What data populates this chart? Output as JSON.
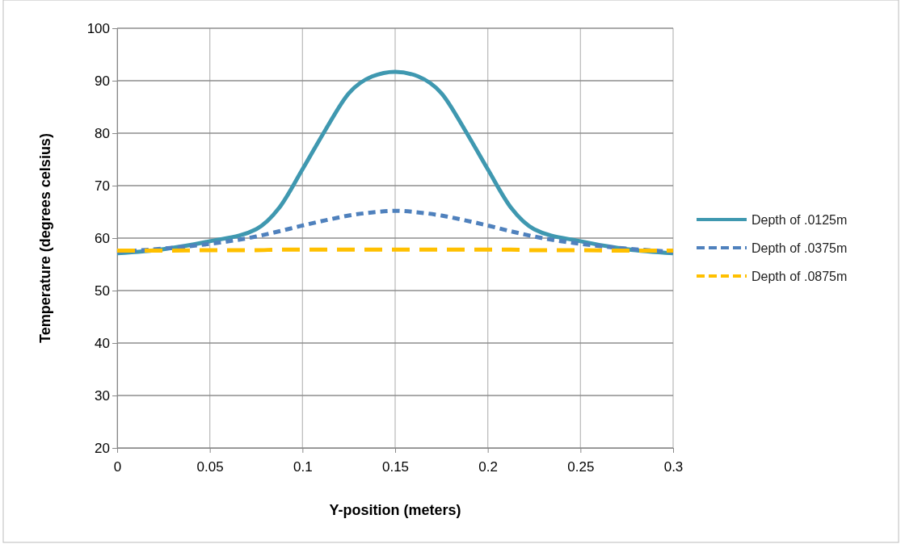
{
  "chart_data": {
    "type": "line",
    "xlabel": "Y-position (meters)",
    "ylabel": "Temperature (degrees celsius)",
    "xlim": [
      0,
      0.3
    ],
    "xticks": [
      0,
      0.05,
      0.1,
      0.15,
      0.2,
      0.25,
      0.3
    ],
    "ylim": [
      20,
      100
    ],
    "yticks": [
      20,
      30,
      40,
      50,
      60,
      70,
      80,
      90,
      100
    ],
    "grid": true,
    "legend": "right",
    "marker": "none",
    "x": [
      0,
      0.025,
      0.05,
      0.075,
      0.0875,
      0.1,
      0.1125,
      0.125,
      0.1375,
      0.15,
      0.1625,
      0.175,
      0.1875,
      0.2,
      0.2125,
      0.225,
      0.25,
      0.275,
      0.3
    ],
    "series": [
      {
        "name": "Depth of .0125m",
        "color": "#3f98b0",
        "line_style": "solid",
        "values": [
          57.1,
          57.9,
          59.4,
          61.7,
          65.8,
          73.1,
          80.7,
          87.6,
          90.8,
          91.7,
          90.8,
          87.6,
          80.7,
          73.1,
          65.8,
          61.7,
          59.4,
          57.9,
          57.1
        ]
      },
      {
        "name": "Depth of .0375m",
        "color": "#4f81bd",
        "line_style": "dotted",
        "values": [
          57.4,
          58.0,
          58.9,
          60.3,
          61.3,
          62.4,
          63.4,
          64.3,
          64.9,
          65.2,
          64.9,
          64.3,
          63.4,
          62.4,
          61.3,
          60.3,
          58.9,
          58.0,
          57.4
        ]
      },
      {
        "name": "Depth of .0875m",
        "color": "#ffc000",
        "line_style": "dashed",
        "values": [
          57.6,
          57.6,
          57.7,
          57.7,
          57.8,
          57.8,
          57.8,
          57.8,
          57.8,
          57.8,
          57.8,
          57.8,
          57.8,
          57.8,
          57.8,
          57.7,
          57.7,
          57.6,
          57.6
        ]
      }
    ]
  }
}
